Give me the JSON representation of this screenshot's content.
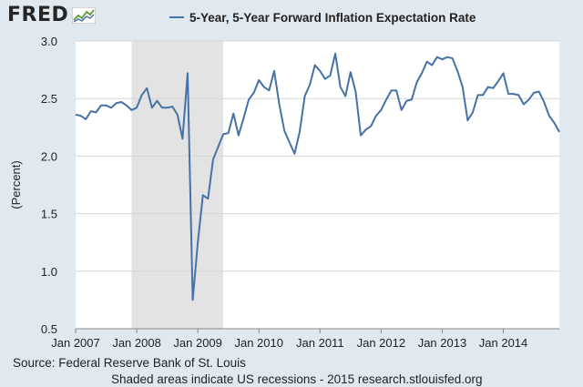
{
  "header": {
    "logo_text": "FRED",
    "logo_icon": "chart-icon",
    "legend_label": "5-Year, 5-Year Forward Inflation Expectation Rate"
  },
  "colors": {
    "background": "#e1e9f0",
    "plot_background": "#ffffff",
    "line": "#4572a7",
    "recession_shade": "#e3e3e3",
    "grid": "#d7d7d7"
  },
  "footer": {
    "source": "Source: Federal Reserve Bank of St. Louis",
    "note": "Shaded areas indicate US recessions - 2015 research.stlouisfed.org"
  },
  "chart_data": {
    "type": "line",
    "title": "",
    "ylabel": "(Percent)",
    "xlabel": "",
    "ylim": [
      0.5,
      3.0
    ],
    "yticks": [
      0.5,
      1.0,
      1.5,
      2.0,
      2.5,
      3.0
    ],
    "ytick_labels": [
      "0.5",
      "1.0",
      "1.5",
      "2.0",
      "2.5",
      "3.0"
    ],
    "xlim": [
      "2007-01",
      "2014-12"
    ],
    "xticks": [
      "2007-01",
      "2008-01",
      "2009-01",
      "2010-01",
      "2011-01",
      "2012-01",
      "2013-01",
      "2014-01"
    ],
    "xtick_labels": [
      "Jan 2007",
      "Jan 2008",
      "Jan 2009",
      "Jan 2010",
      "Jan 2011",
      "Jan 2012",
      "Jan 2013",
      "Jan 2014"
    ],
    "grid": "horizontal",
    "legend_position": "top",
    "recessions": [
      {
        "start": "2007-12",
        "end": "2009-06"
      }
    ],
    "series": [
      {
        "name": "5-Year, 5-Year Forward Inflation Expectation Rate",
        "x": [
          "2007-01",
          "2007-02",
          "2007-03",
          "2007-04",
          "2007-05",
          "2007-06",
          "2007-07",
          "2007-08",
          "2007-09",
          "2007-10",
          "2007-11",
          "2007-12",
          "2008-01",
          "2008-02",
          "2008-03",
          "2008-04",
          "2008-05",
          "2008-06",
          "2008-07",
          "2008-08",
          "2008-09",
          "2008-10",
          "2008-11",
          "2008-12",
          "2009-01",
          "2009-02",
          "2009-03",
          "2009-04",
          "2009-05",
          "2009-06",
          "2009-07",
          "2009-08",
          "2009-09",
          "2009-10",
          "2009-11",
          "2009-12",
          "2010-01",
          "2010-02",
          "2010-03",
          "2010-04",
          "2010-05",
          "2010-06",
          "2010-07",
          "2010-08",
          "2010-09",
          "2010-10",
          "2010-11",
          "2010-12",
          "2011-01",
          "2011-02",
          "2011-03",
          "2011-04",
          "2011-05",
          "2011-06",
          "2011-07",
          "2011-08",
          "2011-09",
          "2011-10",
          "2011-11",
          "2011-12",
          "2012-01",
          "2012-02",
          "2012-03",
          "2012-04",
          "2012-05",
          "2012-06",
          "2012-07",
          "2012-08",
          "2012-09",
          "2012-10",
          "2012-11",
          "2012-12",
          "2013-01",
          "2013-02",
          "2013-03",
          "2013-04",
          "2013-05",
          "2013-06",
          "2013-07",
          "2013-08",
          "2013-09",
          "2013-10",
          "2013-11",
          "2013-12",
          "2014-01",
          "2014-02",
          "2014-03",
          "2014-04",
          "2014-05",
          "2014-06",
          "2014-07",
          "2014-08",
          "2014-09",
          "2014-10",
          "2014-11",
          "2014-12"
        ],
        "values": [
          2.36,
          2.35,
          2.32,
          2.39,
          2.38,
          2.44,
          2.44,
          2.42,
          2.46,
          2.47,
          2.44,
          2.4,
          2.42,
          2.53,
          2.59,
          2.42,
          2.48,
          2.42,
          2.42,
          2.43,
          2.36,
          2.15,
          2.72,
          0.75,
          1.25,
          1.66,
          1.63,
          1.97,
          2.08,
          2.19,
          2.2,
          2.37,
          2.18,
          2.33,
          2.49,
          2.55,
          2.66,
          2.6,
          2.57,
          2.74,
          2.45,
          2.22,
          2.12,
          2.02,
          2.21,
          2.52,
          2.62,
          2.79,
          2.74,
          2.67,
          2.7,
          2.89,
          2.6,
          2.52,
          2.73,
          2.56,
          2.18,
          2.23,
          2.26,
          2.35,
          2.4,
          2.49,
          2.57,
          2.57,
          2.4,
          2.48,
          2.49,
          2.64,
          2.72,
          2.82,
          2.79,
          2.86,
          2.84,
          2.86,
          2.85,
          2.74,
          2.6,
          2.31,
          2.38,
          2.53,
          2.53,
          2.6,
          2.59,
          2.65,
          2.72,
          2.54,
          2.54,
          2.53,
          2.45,
          2.49,
          2.55,
          2.56,
          2.47,
          2.35,
          2.29,
          2.21
        ]
      }
    ]
  }
}
